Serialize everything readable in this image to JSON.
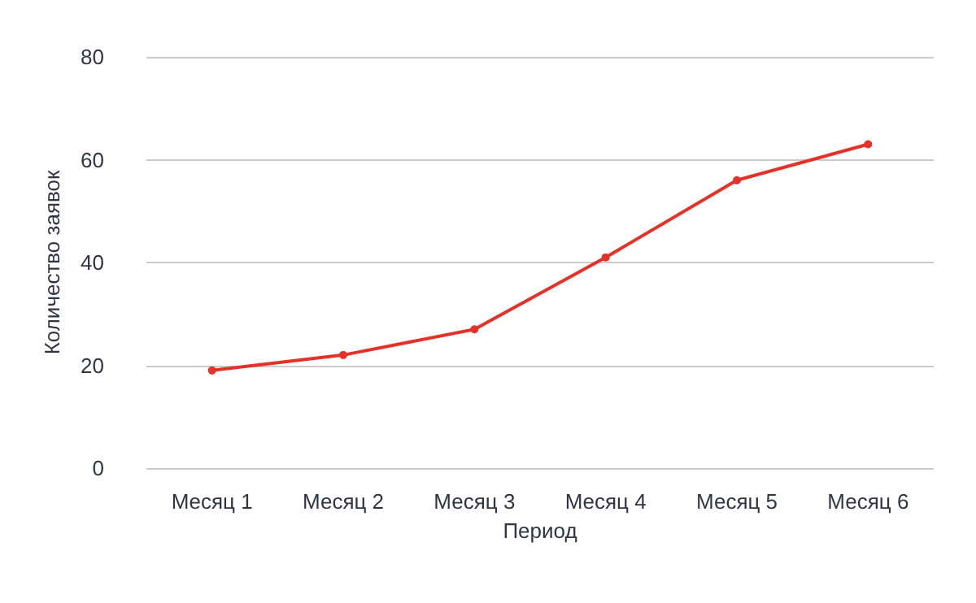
{
  "chart_data": {
    "type": "line",
    "xlabel": "Период",
    "ylabel": "Количество заявок",
    "categories": [
      "Месяц 1",
      "Месяц 2",
      "Месяц 3",
      "Месяц 4",
      "Месяц 5",
      "Месяц 6"
    ],
    "series": [
      {
        "color": "#e53228",
        "values": [
          19,
          22,
          27,
          41,
          56,
          63
        ]
      }
    ],
    "ylim": [
      0,
      80
    ],
    "yticks": [
      0,
      20,
      40,
      60,
      80
    ],
    "grid": "y",
    "marker": "circle",
    "line_style": "solid"
  }
}
